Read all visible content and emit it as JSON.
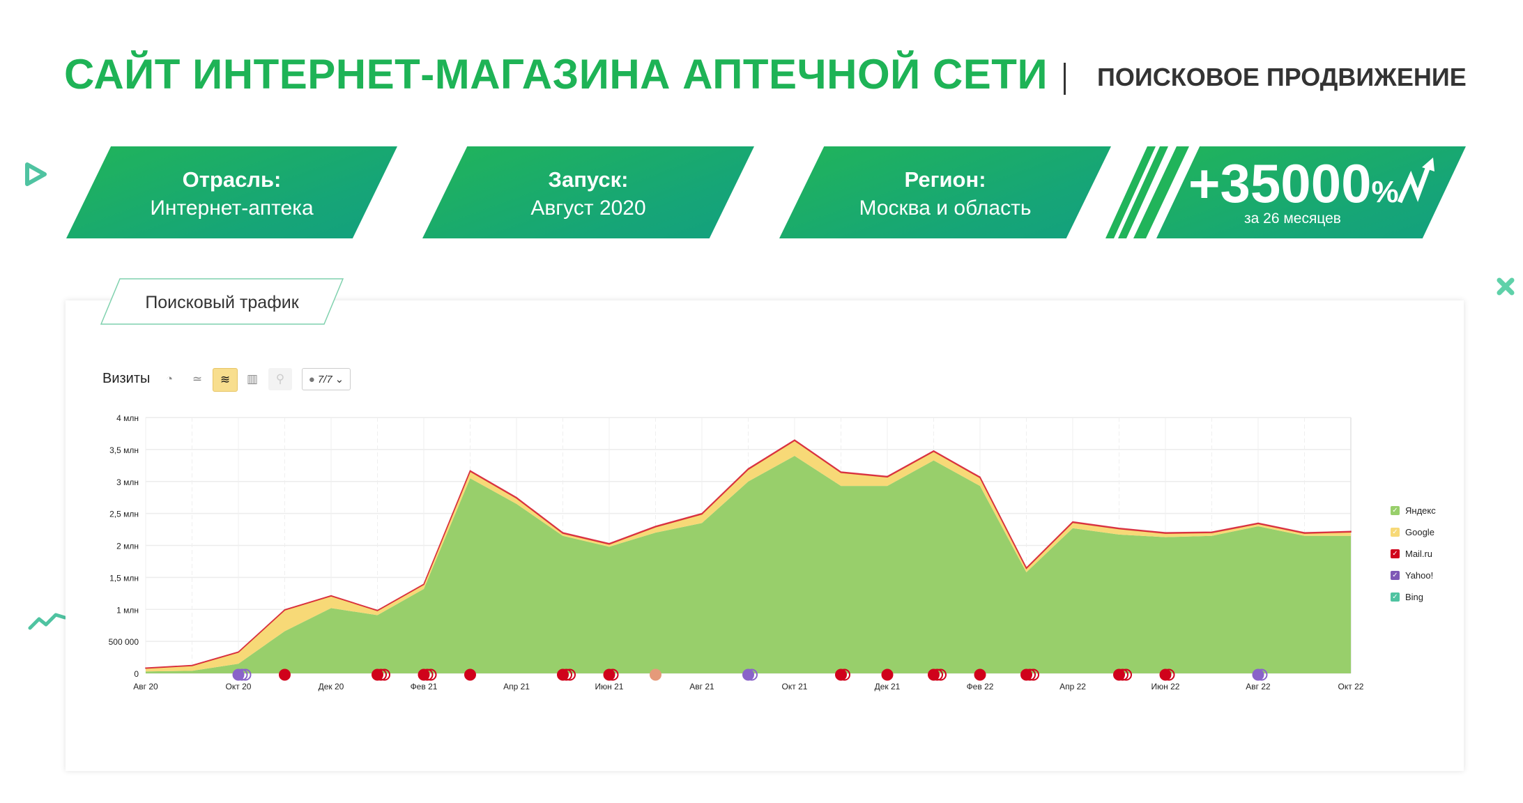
{
  "header": {
    "title": "САЙТ ИНТЕРНЕТ-МАГАЗИНА АПТЕЧНОЙ СЕТИ",
    "subtitle": "ПОИСКОВОЕ ПРОДВИЖЕНИЕ"
  },
  "cards": [
    {
      "label": "Отрасль:",
      "value": "Интернет-аптека"
    },
    {
      "label": "Запуск:",
      "value": "Август 2020"
    },
    {
      "label": "Регион:",
      "value": "Москва и область"
    }
  ],
  "highlight": {
    "value": "+35000",
    "unit": "%",
    "caption": "за 26 месяцев",
    "icon": "trend-up-arrow-icon"
  },
  "colors": {
    "brand": "#1eb356",
    "card": "#17a873"
  },
  "panel": {
    "tab_label": "Поисковый трафик",
    "toolbar": {
      "metric_label": "Визиты",
      "buttons": [
        "pie-chart-icon",
        "line-chart-icon",
        "area-chart-icon",
        "bar-chart-icon",
        "map-icon"
      ],
      "active_button": "area-chart-icon",
      "annotations_selector": "7/7"
    }
  },
  "chart_data": {
    "type": "area",
    "stacked": true,
    "categories": [
      "Авг 20",
      "Сен 20",
      "Окт 20",
      "Ноя 20",
      "Дек 20",
      "Янв 21",
      "Фев 21",
      "Мар 21",
      "Апр 21",
      "Май 21",
      "Июн 21",
      "Июл 21",
      "Авг 21",
      "Сен 21",
      "Окт 21",
      "Ноя 21",
      "Дек 21",
      "Янв 22",
      "Фев 22",
      "Мар 22",
      "Апр 22",
      "Май 22",
      "Июн 22",
      "Июл 22",
      "Авг 22",
      "Сен 22",
      "Окт 22"
    ],
    "x_tick_labels": [
      "Авг 20",
      "Окт 20",
      "Дек 20",
      "Фев 21",
      "Апр 21",
      "Июн 21",
      "Авг 21",
      "Окт 21",
      "Дек 21",
      "Фев 22",
      "Апр 22",
      "Июн 22",
      "Авг 22",
      "Окт 22"
    ],
    "y_tick_labels": [
      "0",
      "500 000",
      "1 млн",
      "1,5 млн",
      "2 млн",
      "2,5 млн",
      "3 млн",
      "3,5 млн",
      "4 млн"
    ],
    "y_unit": "млн",
    "ylim": [
      0,
      4
    ],
    "grid": true,
    "legend": "right",
    "series": [
      {
        "name": "Яндекс",
        "color": "#98cf6b",
        "values": [
          0.03,
          0.04,
          0.15,
          0.66,
          1.02,
          0.91,
          1.32,
          3.05,
          2.65,
          2.15,
          1.98,
          2.2,
          2.35,
          3.0,
          3.4,
          2.93,
          2.93,
          3.33,
          2.93,
          1.58,
          2.27,
          2.17,
          2.13,
          2.15,
          2.3,
          2.15,
          2.15
        ]
      },
      {
        "name": "Google",
        "color": "#f7d977",
        "values": [
          0.05,
          0.08,
          0.18,
          0.33,
          0.19,
          0.07,
          0.07,
          0.11,
          0.09,
          0.04,
          0.04,
          0.09,
          0.14,
          0.19,
          0.24,
          0.21,
          0.14,
          0.14,
          0.13,
          0.06,
          0.09,
          0.09,
          0.06,
          0.05,
          0.04,
          0.04,
          0.06
        ]
      },
      {
        "name": "Mail.ru",
        "color": "#d0021b",
        "values": [
          0.005,
          0.005,
          0.005,
          0.005,
          0.005,
          0.005,
          0.005,
          0.01,
          0.01,
          0.01,
          0.01,
          0.01,
          0.01,
          0.01,
          0.01,
          0.01,
          0.01,
          0.01,
          0.01,
          0.01,
          0.01,
          0.01,
          0.01,
          0.01,
          0.01,
          0.01,
          0.01
        ]
      },
      {
        "name": "Yahoo!",
        "color": "#7f58b6",
        "values": [
          0,
          0,
          0,
          0,
          0,
          0,
          0,
          0,
          0,
          0,
          0,
          0,
          0,
          0,
          0,
          0,
          0,
          0,
          0,
          0,
          0,
          0,
          0,
          0,
          0,
          0,
          0
        ]
      },
      {
        "name": "Bing",
        "color": "#4fc3a1",
        "values": [
          0,
          0,
          0,
          0,
          0,
          0,
          0,
          0,
          0,
          0,
          0,
          0,
          0,
          0,
          0,
          0,
          0,
          0,
          0,
          0,
          0,
          0,
          0,
          0,
          0,
          0,
          0
        ]
      }
    ],
    "annotations": [
      {
        "month": "Окт 20",
        "color": "#8a63c9",
        "count": 3
      },
      {
        "month": "Ноя 20",
        "color": "#d0021b",
        "count": 1
      },
      {
        "month": "Янв 21",
        "color": "#d0021b",
        "count": 3
      },
      {
        "month": "Фев 21",
        "color": "#d0021b",
        "count": 3
      },
      {
        "month": "Мар 21",
        "color": "#d0021b",
        "count": 1
      },
      {
        "month": "Май 21",
        "color": "#d0021b",
        "count": 3
      },
      {
        "month": "Июн 21",
        "color": "#d0021b",
        "count": 2
      },
      {
        "month": "Июл 21",
        "color": "#e59a7a",
        "count": 1
      },
      {
        "month": "Сен 21",
        "color": "#8a63c9",
        "count": 2
      },
      {
        "month": "Ноя 21",
        "color": "#d0021b",
        "count": 2
      },
      {
        "month": "Дек 21",
        "color": "#d0021b",
        "count": 1
      },
      {
        "month": "Янв 22",
        "color": "#d0021b",
        "count": 3
      },
      {
        "month": "Фев 22",
        "color": "#d0021b",
        "count": 1
      },
      {
        "month": "Мар 22",
        "color": "#d0021b",
        "count": 3
      },
      {
        "month": "Май 22",
        "color": "#d0021b",
        "count": 3
      },
      {
        "month": "Июн 22",
        "color": "#d0021b",
        "count": 2
      },
      {
        "month": "Авг 22",
        "color": "#8a63c9",
        "count": 2
      }
    ]
  }
}
